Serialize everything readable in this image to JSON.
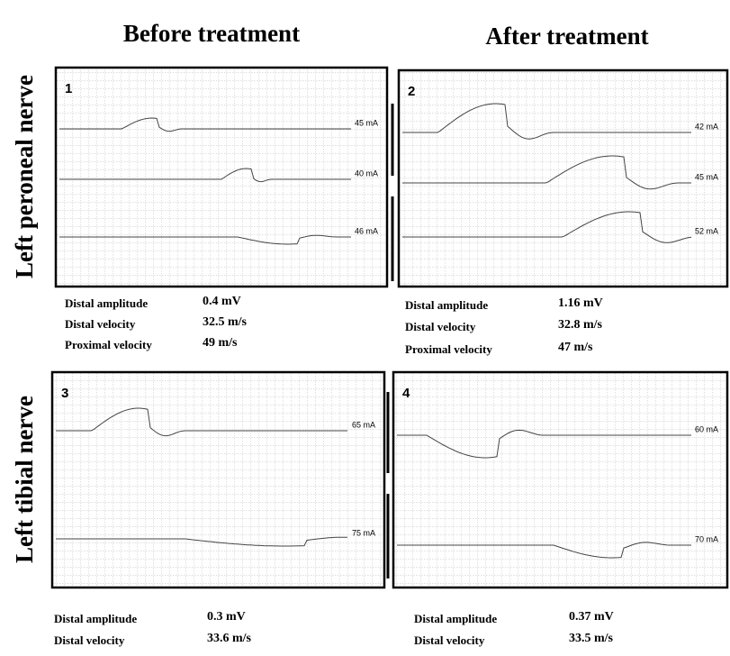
{
  "headers": [
    "Before treatment",
    "After treatment"
  ],
  "rows": [
    "Left peroneal nerve",
    "Left tibial nerve"
  ],
  "panels": [
    {
      "number": "1",
      "stim": [
        "45 mA",
        "40 mA",
        "46 mA"
      ],
      "measurements": [
        {
          "label": "Distal amplitude",
          "value": "0.4 mV"
        },
        {
          "label": "Distal velocity",
          "value": "32.5 m/s"
        },
        {
          "label": "Proximal velocity",
          "value": "49 m/s"
        }
      ]
    },
    {
      "number": "2",
      "stim": [
        "42 mA",
        "45 mA",
        "52 mA"
      ],
      "measurements": [
        {
          "label": "Distal amplitude",
          "value": "1.16 mV"
        },
        {
          "label": "Distal velocity",
          "value": "32.8 m/s"
        },
        {
          "label": "Proximal velocity",
          "value": "47 m/s"
        }
      ]
    },
    {
      "number": "3",
      "stim": [
        "65 mA",
        "75 mA"
      ],
      "measurements": [
        {
          "label": "Distal amplitude",
          "value": "0.3 mV"
        },
        {
          "label": "Distal velocity",
          "value": "33.6 m/s"
        }
      ]
    },
    {
      "number": "4",
      "stim": [
        "60 mA",
        "70 mA"
      ],
      "measurements": [
        {
          "label": "Distal amplitude",
          "value": "0.37 mV"
        },
        {
          "label": "Distal velocity",
          "value": "33.5 m/s"
        }
      ]
    }
  ]
}
